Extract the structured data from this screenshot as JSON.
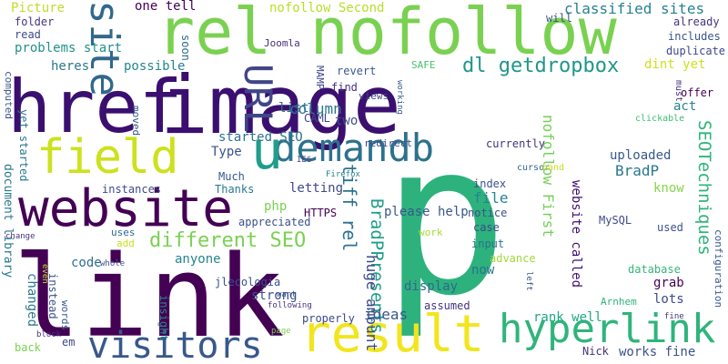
{
  "words": [
    {
      "text": "image",
      "color": "#3b0f70"
    },
    {
      "text": "p",
      "color": "#2db27d"
    },
    {
      "text": "link",
      "color": "#440154"
    },
    {
      "text": "rel nofollow",
      "color": "#7ad151"
    },
    {
      "text": "href",
      "color": "#3b0f70"
    },
    {
      "text": "website",
      "color": "#440154"
    },
    {
      "text": "field",
      "color": "#cde11d"
    },
    {
      "text": "result",
      "color": "#f2e51d"
    },
    {
      "text": "demandb",
      "color": "#2c728e"
    },
    {
      "text": "hyperlink",
      "color": "#2fb47c"
    },
    {
      "text": "visitors",
      "color": "#38588c"
    },
    {
      "text": "site",
      "color": "#31688e"
    },
    {
      "text": "u",
      "color": "#1f9e89"
    },
    {
      "text": "URL",
      "color": "#404688"
    },
    {
      "text": "dl getdropbox",
      "color": "#1f968b"
    },
    {
      "text": "different SEO",
      "color": "#7ad151"
    },
    {
      "text": "BradPPresents",
      "color": "#1f9e89"
    },
    {
      "text": "SEOTechniques",
      "color": "#2fb47c"
    },
    {
      "text": "tiff rel",
      "color": "#2c728e"
    },
    {
      "text": "huge amount",
      "color": "#3e4989"
    },
    {
      "text": "website called",
      "color": "#3b0f70"
    },
    {
      "text": "nofollow First",
      "color": "#73d056"
    },
    {
      "text": "one tell",
      "color": "#440154"
    },
    {
      "text": "nofollow Second",
      "color": "#b8de29"
    },
    {
      "text": "classified sites",
      "color": "#26828e"
    },
    {
      "text": "problems start",
      "color": "#21918c"
    },
    {
      "text": "heres",
      "color": "#2a788e"
    },
    {
      "text": "possible",
      "color": "#25858e"
    },
    {
      "text": "Picture",
      "color": "#bddf26"
    },
    {
      "text": "folder",
      "color": "#46337f"
    },
    {
      "text": "read",
      "color": "#3e4a89"
    },
    {
      "text": "soon",
      "color": "#31688e"
    },
    {
      "text": "Joomla",
      "color": "#46327e"
    },
    {
      "text": "MAMP",
      "color": "#404688"
    },
    {
      "text": "revert",
      "color": "#38588c"
    },
    {
      "text": "SAFE",
      "color": "#4ac16d"
    },
    {
      "text": "find",
      "color": "#46337f"
    },
    {
      "text": "views",
      "color": "#3e4989"
    },
    {
      "text": "list",
      "color": "#2d708e"
    },
    {
      "text": "column",
      "color": "#2a788e"
    },
    {
      "text": "CAML",
      "color": "#3e4a89"
    },
    {
      "text": "two",
      "color": "#3b528b"
    },
    {
      "text": "started SEO",
      "color": "#2d708e"
    },
    {
      "text": "Type",
      "color": "#3b528b"
    },
    {
      "text": "Much",
      "color": "#38588c"
    },
    {
      "text": "Thanks",
      "color": "#2a788e"
    },
    {
      "text": "instances",
      "color": "#3e4989"
    },
    {
      "text": "letting",
      "color": "#3e4989"
    },
    {
      "text": "php",
      "color": "#7ad151"
    },
    {
      "text": "HTTPS",
      "color": "#440154"
    },
    {
      "text": "appreciated",
      "color": "#3b528b"
    },
    {
      "text": "anyone",
      "color": "#25858e"
    },
    {
      "text": "code",
      "color": "#2d708e"
    },
    {
      "text": "uses",
      "color": "#31688e"
    },
    {
      "text": "add",
      "color": "#c8e020"
    },
    {
      "text": "jlecologia",
      "color": "#3b528b"
    },
    {
      "text": "strong",
      "color": "#3b528b"
    },
    {
      "text": "ideas",
      "color": "#38588c"
    },
    {
      "text": "display",
      "color": "#31688e"
    },
    {
      "text": "now",
      "color": "#2d708e"
    },
    {
      "text": "assumed",
      "color": "#46337f"
    },
    {
      "text": "properly",
      "color": "#3e4989"
    },
    {
      "text": "em",
      "color": "#3e4989"
    },
    {
      "text": "back",
      "color": "#7ad151"
    },
    {
      "text": "Nick",
      "color": "#46337f"
    },
    {
      "text": "works fine",
      "color": "#3b528b"
    },
    {
      "text": "rank well",
      "color": "#21a685"
    },
    {
      "text": "lots",
      "color": "#3e4989"
    },
    {
      "text": "Arnhem",
      "color": "#2fb47c"
    },
    {
      "text": "grab",
      "color": "#440154"
    },
    {
      "text": "database",
      "color": "#35b779"
    },
    {
      "text": "configuration",
      "color": "#38588c"
    },
    {
      "text": "used",
      "color": "#3b528b"
    },
    {
      "text": "MySQL",
      "color": "#3e4989"
    },
    {
      "text": "case",
      "color": "#3e4989"
    },
    {
      "text": "input",
      "color": "#2c728e"
    },
    {
      "text": "advance",
      "color": "#a0da39"
    },
    {
      "text": "work",
      "color": "#a5db36"
    },
    {
      "text": "notice",
      "color": "#3b528b"
    },
    {
      "text": "index",
      "color": "#3b528b"
    },
    {
      "text": "please help",
      "color": "#38588c"
    },
    {
      "text": "file",
      "color": "#25858e"
    },
    {
      "text": "uploaded",
      "color": "#38588c"
    },
    {
      "text": "BradP",
      "color": "#2a788e"
    },
    {
      "text": "know",
      "color": "#86d549"
    },
    {
      "text": "currently",
      "color": "#46337f"
    },
    {
      "text": "redirect",
      "color": "#3e4989"
    },
    {
      "text": "IE6",
      "color": "#404688"
    },
    {
      "text": "Firefox",
      "color": "#26828e"
    },
    {
      "text": "cursor",
      "color": "#31688e"
    },
    {
      "text": "hand",
      "color": "#c8e020"
    },
    {
      "text": "clickable",
      "color": "#3fbc73"
    },
    {
      "text": "act",
      "color": "#25858e"
    },
    {
      "text": "offer",
      "color": "#440154"
    },
    {
      "text": "dint yet",
      "color": "#cde11d"
    },
    {
      "text": "duplicate",
      "color": "#3e4989"
    },
    {
      "text": "includes",
      "color": "#3b528b"
    },
    {
      "text": "already",
      "color": "#46337f"
    },
    {
      "text": "will",
      "color": "#3b528b"
    },
    {
      "text": "must",
      "color": "#46337f"
    },
    {
      "text": "working",
      "color": "#38588c"
    },
    {
      "text": "computed",
      "color": "#38588c"
    },
    {
      "text": "yet started",
      "color": "#2a788e"
    },
    {
      "text": "document library",
      "color": "#2a788e"
    },
    {
      "text": "moved",
      "color": "#38588c"
    },
    {
      "text": "changed",
      "color": "#2a788e"
    },
    {
      "text": "change",
      "color": "#46337f"
    },
    {
      "text": "even",
      "color": "#c8e020"
    },
    {
      "text": "instead",
      "color": "#3b528b"
    },
    {
      "text": "words",
      "color": "#38588c"
    },
    {
      "text": "whole",
      "color": "#3b528b"
    },
    {
      "text": "insight",
      "color": "#25858e"
    },
    {
      "text": "want",
      "color": "#3b528b"
    },
    {
      "text": "following",
      "color": "#46337f"
    },
    {
      "text": "page",
      "color": "#7ad151"
    },
    {
      "text": "block",
      "color": "#46337f"
    },
    {
      "text": "left",
      "color": "#3b528b"
    },
    {
      "text": "fine",
      "color": "#46337f"
    }
  ]
}
